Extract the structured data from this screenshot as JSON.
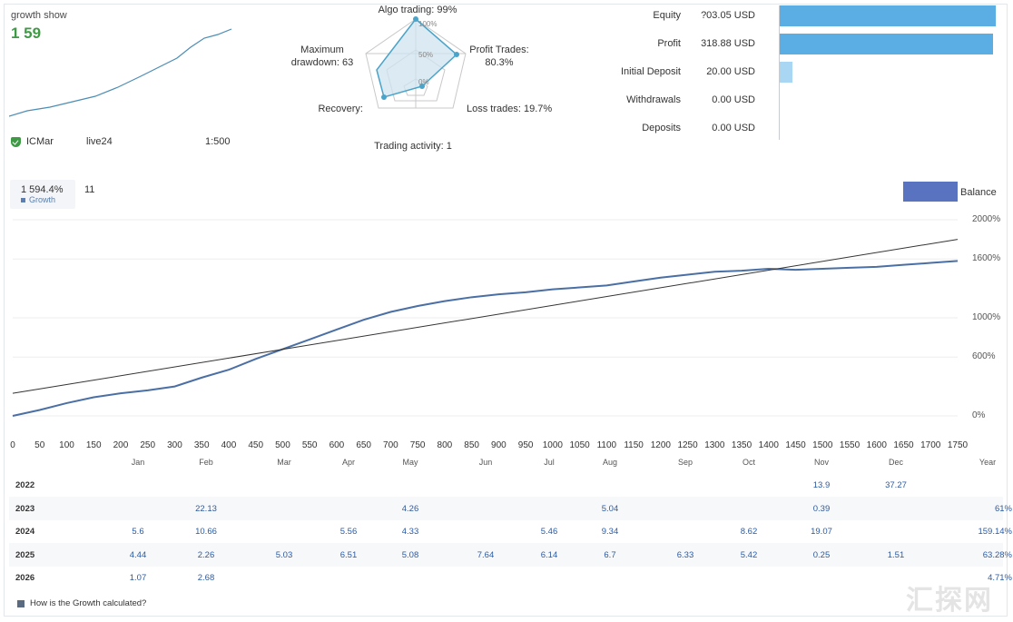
{
  "growth_widget": {
    "title": "growth show",
    "value": "1 59",
    "account_broker": "ICMar",
    "account_type": "live24",
    "leverage": "1:500"
  },
  "radar": {
    "labels": {
      "algo": "Algo trading: 99%",
      "profit_trades": "Profit Trades:",
      "profit_trades_value": "80.3%",
      "max_drawdown": "Maximum",
      "max_drawdown_2": "drawdown: 63",
      "loss_trades": "Loss trades: 19.7%",
      "trading_activity": "Trading activity: 1",
      "recovery": "Recovery:"
    },
    "ticks": [
      "100%",
      "50%",
      "0%"
    ]
  },
  "financials": {
    "rows": [
      {
        "label": "Equity",
        "value": "?03.05 USD",
        "bar": 0.99
      },
      {
        "label": "Profit",
        "value": "318.88 USD",
        "bar": 0.98
      },
      {
        "label": "Initial Deposit",
        "value": "20.00 USD",
        "bar": 0.06
      },
      {
        "label": "Withdrawals",
        "value": "0.00 USD",
        "bar": 0
      },
      {
        "label": "Deposits",
        "value": "0.00 USD",
        "bar": 0
      }
    ]
  },
  "growth_chart": {
    "badge_value": "1 594.4%",
    "badge_label": "Growth",
    "badge_trades": "11",
    "legend_label": "Balance",
    "y_ticks": [
      "2000%",
      "1600%",
      "1000%",
      "600%",
      "0%"
    ],
    "x_ticks": [
      "0",
      "50",
      "100",
      "150",
      "200",
      "250",
      "300",
      "350",
      "400",
      "450",
      "500",
      "550",
      "600",
      "650",
      "700",
      "750",
      "800",
      "850",
      "900",
      "950",
      "1000",
      "1050",
      "1100",
      "1150",
      "1200",
      "1250",
      "1300",
      "1350",
      "1400",
      "1450",
      "1500",
      "1550",
      "1600",
      "1650",
      "1700",
      "1750"
    ]
  },
  "chart_data": {
    "type": "line",
    "xlabel": "",
    "ylabel": "",
    "xlim": [
      0,
      1750
    ],
    "ylim": [
      0,
      2000
    ],
    "series": [
      {
        "name": "Balance",
        "x": [
          0,
          50,
          100,
          150,
          200,
          250,
          300,
          350,
          400,
          450,
          500,
          550,
          600,
          650,
          700,
          750,
          800,
          850,
          900,
          950,
          1000,
          1050,
          1100,
          1150,
          1200,
          1250,
          1300,
          1350,
          1400,
          1450,
          1500,
          1550,
          1600,
          1650,
          1700,
          1750
        ],
        "values": [
          0,
          60,
          130,
          190,
          230,
          260,
          300,
          390,
          470,
          580,
          680,
          780,
          880,
          980,
          1060,
          1120,
          1170,
          1210,
          1240,
          1260,
          1290,
          1310,
          1330,
          1370,
          1410,
          1440,
          1470,
          1480,
          1500,
          1490,
          1500,
          1510,
          1520,
          1540,
          1560,
          1580
        ]
      },
      {
        "x": [
          0,
          1750
        ],
        "values": [
          230,
          1800
        ]
      }
    ]
  },
  "monthly": {
    "months": [
      "Jan",
      "Feb",
      "Mar",
      "Apr",
      "May",
      "Jun",
      "Jul",
      "Aug",
      "Sep",
      "Oct",
      "Nov",
      "Dec",
      "Year"
    ],
    "rows": [
      {
        "year": "2022",
        "cells": [
          "",
          "",
          "",
          "",
          "",
          "",
          "",
          "",
          "",
          "",
          "13.9",
          "37.27",
          ""
        ]
      },
      {
        "year": "2023",
        "cells": [
          "",
          "22.13",
          "",
          "",
          "4.26",
          "",
          "",
          "5.04",
          "",
          "",
          "0.39",
          "",
          "61%"
        ]
      },
      {
        "year": "2024",
        "cells": [
          "5.6",
          "10.66",
          "",
          "5.56",
          "4.33",
          "",
          "5.46",
          "9.34",
          "",
          "8.62",
          "19.07",
          "",
          "159.14%"
        ]
      },
      {
        "year": "2025",
        "cells": [
          "4.44",
          "2.26",
          "5.03",
          "6.51",
          "5.08",
          "7.64",
          "6.14",
          "6.7",
          "6.33",
          "5.42",
          "0.25",
          "1.51",
          "63.28%"
        ]
      },
      {
        "year": "2026",
        "cells": [
          "1.07",
          "2.68",
          "",
          "",
          "",
          "",
          "",
          "",
          "",
          "",
          "",
          "",
          "4.71%"
        ]
      }
    ]
  },
  "footer": {
    "link": "How is the Growth calculated?"
  },
  "watermark": "汇探网"
}
